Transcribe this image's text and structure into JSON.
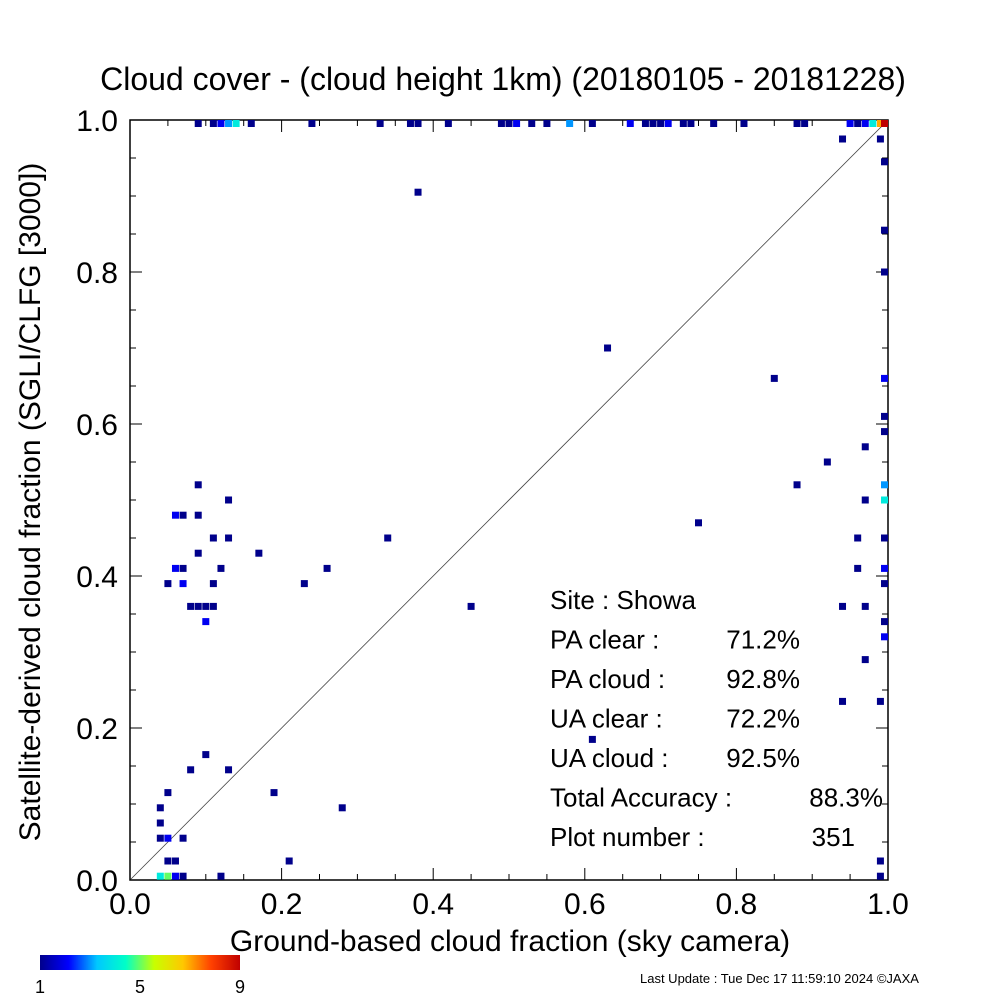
{
  "chart_data": {
    "type": "scatter",
    "title": "Cloud cover - (cloud height 1km)  (20180105 - 20181228)",
    "xlabel": "Ground-based cloud fraction (sky camera)",
    "ylabel": "Satellite-derived cloud fraction (SGLI/CLFG [3000])",
    "xlim": [
      0.0,
      1.0
    ],
    "ylim": [
      0.0,
      1.0
    ],
    "x_ticks": [
      "0.0",
      "0.2",
      "0.4",
      "0.6",
      "0.8",
      "1.0"
    ],
    "y_ticks": [
      "0.0",
      "0.2",
      "0.4",
      "0.6",
      "0.8",
      "1.0"
    ],
    "grid": false,
    "diagonal_line": true,
    "colorbar": {
      "min_label": "1",
      "mid_label": "5",
      "max_label": "9",
      "colors": [
        "#00008b",
        "#0000ff",
        "#00c8ff",
        "#00ffc8",
        "#c8ff00",
        "#ffc800",
        "#ff4000",
        "#c00000"
      ]
    },
    "stats": [
      {
        "label": "Site : Showa",
        "value": ""
      },
      {
        "label": "PA clear :",
        "value": "71.2%"
      },
      {
        "label": "PA cloud :",
        "value": "92.8%"
      },
      {
        "label": "UA clear :",
        "value": "72.2%"
      },
      {
        "label": "UA cloud :",
        "value": "92.5%"
      },
      {
        "label": "Total Accuracy :",
        "value": "88.3%"
      },
      {
        "label": "Plot number :",
        "value": "351"
      }
    ],
    "points": [
      [
        0.09,
        1.0,
        1
      ],
      [
        0.11,
        1.0,
        1
      ],
      [
        0.12,
        1.0,
        2
      ],
      [
        0.13,
        1.0,
        3
      ],
      [
        0.14,
        1.0,
        4
      ],
      [
        0.16,
        1.0,
        1
      ],
      [
        0.24,
        1.0,
        1
      ],
      [
        0.33,
        1.0,
        1
      ],
      [
        0.37,
        1.0,
        1
      ],
      [
        0.38,
        1.0,
        1
      ],
      [
        0.42,
        1.0,
        1
      ],
      [
        0.49,
        1.0,
        1
      ],
      [
        0.5,
        1.0,
        1
      ],
      [
        0.51,
        1.0,
        2
      ],
      [
        0.53,
        1.0,
        1
      ],
      [
        0.55,
        1.0,
        1
      ],
      [
        0.58,
        1.0,
        3
      ],
      [
        0.61,
        1.0,
        1
      ],
      [
        0.66,
        1.0,
        2
      ],
      [
        0.68,
        1.0,
        1
      ],
      [
        0.69,
        1.0,
        1
      ],
      [
        0.7,
        1.0,
        1
      ],
      [
        0.71,
        1.0,
        2
      ],
      [
        0.73,
        1.0,
        1
      ],
      [
        0.74,
        1.0,
        1
      ],
      [
        0.77,
        1.0,
        1
      ],
      [
        0.81,
        1.0,
        1
      ],
      [
        0.88,
        1.0,
        1
      ],
      [
        0.89,
        1.0,
        1
      ],
      [
        0.95,
        1.0,
        2
      ],
      [
        0.96,
        1.0,
        1
      ],
      [
        0.97,
        1.0,
        2
      ],
      [
        0.98,
        1.0,
        4
      ],
      [
        0.99,
        1.0,
        7
      ],
      [
        1.0,
        1.0,
        9
      ],
      [
        0.38,
        0.905,
        1
      ],
      [
        0.94,
        0.975,
        1
      ],
      [
        0.99,
        0.975,
        1
      ],
      [
        1.0,
        0.945,
        1
      ],
      [
        1.0,
        0.855,
        1
      ],
      [
        1.0,
        0.8,
        1
      ],
      [
        0.63,
        0.7,
        1
      ],
      [
        0.85,
        0.66,
        1
      ],
      [
        1.0,
        0.66,
        2
      ],
      [
        1.0,
        0.61,
        1
      ],
      [
        1.0,
        0.59,
        1
      ],
      [
        0.97,
        0.57,
        1
      ],
      [
        0.92,
        0.55,
        1
      ],
      [
        0.88,
        0.52,
        1
      ],
      [
        1.0,
        0.52,
        3
      ],
      [
        0.97,
        0.5,
        1
      ],
      [
        1.0,
        0.5,
        4
      ],
      [
        0.75,
        0.47,
        1
      ],
      [
        0.96,
        0.45,
        1
      ],
      [
        1.0,
        0.45,
        1
      ],
      [
        0.96,
        0.41,
        1
      ],
      [
        1.0,
        0.41,
        2
      ],
      [
        1.0,
        0.39,
        1
      ],
      [
        0.94,
        0.36,
        1
      ],
      [
        0.97,
        0.36,
        1
      ],
      [
        1.0,
        0.34,
        1
      ],
      [
        1.0,
        0.32,
        2
      ],
      [
        0.97,
        0.29,
        1
      ],
      [
        0.94,
        0.235,
        1
      ],
      [
        0.99,
        0.235,
        1
      ],
      [
        0.61,
        0.185,
        1
      ],
      [
        0.99,
        0.025,
        1
      ],
      [
        0.99,
        0.005,
        1
      ],
      [
        0.09,
        0.52,
        1
      ],
      [
        0.06,
        0.48,
        2
      ],
      [
        0.07,
        0.48,
        1
      ],
      [
        0.09,
        0.48,
        1
      ],
      [
        0.13,
        0.5,
        1
      ],
      [
        0.11,
        0.45,
        1
      ],
      [
        0.13,
        0.45,
        1
      ],
      [
        0.09,
        0.43,
        1
      ],
      [
        0.17,
        0.43,
        1
      ],
      [
        0.34,
        0.45,
        1
      ],
      [
        0.06,
        0.41,
        2
      ],
      [
        0.07,
        0.41,
        1
      ],
      [
        0.12,
        0.41,
        1
      ],
      [
        0.26,
        0.41,
        1
      ],
      [
        0.05,
        0.39,
        1
      ],
      [
        0.07,
        0.39,
        2
      ],
      [
        0.11,
        0.39,
        1
      ],
      [
        0.23,
        0.39,
        1
      ],
      [
        0.08,
        0.36,
        1
      ],
      [
        0.09,
        0.36,
        1
      ],
      [
        0.1,
        0.36,
        1
      ],
      [
        0.11,
        0.36,
        1
      ],
      [
        0.45,
        0.36,
        1
      ],
      [
        0.1,
        0.34,
        2
      ],
      [
        0.1,
        0.165,
        1
      ],
      [
        0.08,
        0.145,
        1
      ],
      [
        0.13,
        0.145,
        1
      ],
      [
        0.05,
        0.115,
        1
      ],
      [
        0.19,
        0.115,
        1
      ],
      [
        0.04,
        0.095,
        1
      ],
      [
        0.28,
        0.095,
        1
      ],
      [
        0.04,
        0.075,
        1
      ],
      [
        0.04,
        0.055,
        1
      ],
      [
        0.05,
        0.055,
        2
      ],
      [
        0.07,
        0.055,
        1
      ],
      [
        0.05,
        0.025,
        1
      ],
      [
        0.06,
        0.025,
        1
      ],
      [
        0.21,
        0.025,
        1
      ],
      [
        0.04,
        0.005,
        4
      ],
      [
        0.05,
        0.005,
        5
      ],
      [
        0.06,
        0.005,
        2
      ],
      [
        0.07,
        0.005,
        1
      ],
      [
        0.12,
        0.005,
        1
      ]
    ]
  },
  "footer": {
    "last_update": "Last Update : Tue Dec 17 11:59:10 2024  ©JAXA"
  }
}
